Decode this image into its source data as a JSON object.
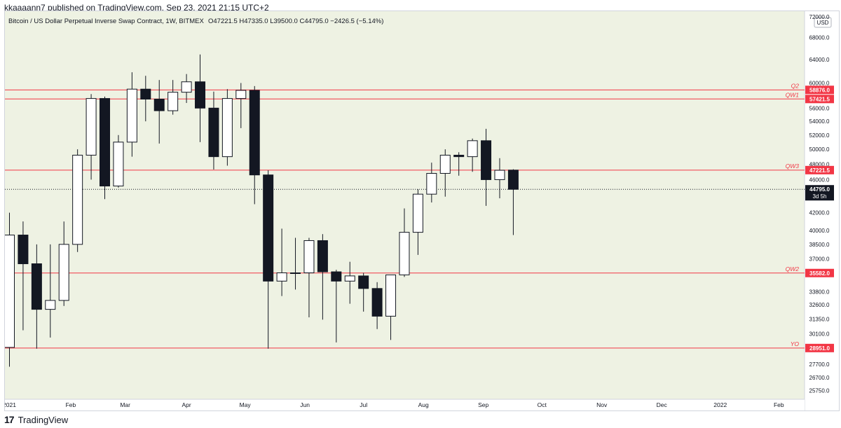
{
  "header": {
    "published_line": "kkaaaann7 published on TradingView.com, Sep 23, 2021 21:15 UTC+2"
  },
  "footer": {
    "logo": "17",
    "brand": "TradingView"
  },
  "chart_data": {
    "type": "candlestick",
    "title": "Bitcoin / US Dollar Perpetual Inverse Swap Contract, 1W, BITMEX",
    "ohlc_summary": "O47221.5  H47335.0  L39500.0  C44795.0  −2426.5 (−5.14%)",
    "currency_label": "USD",
    "y_axis_scale": "log",
    "ylim": [
      25000,
      73000
    ],
    "y_ticks": [
      {
        "value": 72000,
        "label": "72000.0"
      },
      {
        "value": 68000,
        "label": "68000.0"
      },
      {
        "value": 64000,
        "label": "64000.0"
      },
      {
        "value": 60000,
        "label": "60000.0"
      },
      {
        "value": 56000,
        "label": "56000.0"
      },
      {
        "value": 54000,
        "label": "54000.0"
      },
      {
        "value": 52000,
        "label": "52000.0"
      },
      {
        "value": 50000,
        "label": "50000.0"
      },
      {
        "value": 48000,
        "label": "48000.0"
      },
      {
        "value": 46000,
        "label": "46000.0"
      },
      {
        "value": 42000,
        "label": "42000.0"
      },
      {
        "value": 40000,
        "label": "40000.0"
      },
      {
        "value": 38500,
        "label": "38500.0"
      },
      {
        "value": 37000,
        "label": "37000.0"
      },
      {
        "value": 33800,
        "label": "33800.0"
      },
      {
        "value": 32600,
        "label": "32600.0"
      },
      {
        "value": 31350,
        "label": "31350.0"
      },
      {
        "value": 30100,
        "label": "30100.0"
      },
      {
        "value": 27700,
        "label": "27700.0"
      },
      {
        "value": 26700,
        "label": "26700.0"
      },
      {
        "value": 25750,
        "label": "25750.0"
      }
    ],
    "x_ticks": [
      {
        "week": 0,
        "label": "2021"
      },
      {
        "week": 4.5,
        "label": "Feb"
      },
      {
        "week": 8.5,
        "label": "Mar"
      },
      {
        "week": 13,
        "label": "Apr"
      },
      {
        "week": 17.3,
        "label": "May"
      },
      {
        "week": 21.7,
        "label": "Jun"
      },
      {
        "week": 26,
        "label": "Jul"
      },
      {
        "week": 30.4,
        "label": "Aug"
      },
      {
        "week": 34.8,
        "label": "Sep"
      },
      {
        "week": 39.1,
        "label": "Oct"
      },
      {
        "week": 43.5,
        "label": "Nov"
      },
      {
        "week": 47.9,
        "label": "Dec"
      },
      {
        "week": 52.2,
        "label": "2022"
      },
      {
        "week": 56.5,
        "label": "Feb"
      }
    ],
    "candles": [
      {
        "o": 29000,
        "h": 42000,
        "l": 27500,
        "c": 39500
      },
      {
        "o": 39500,
        "h": 41000,
        "l": 30400,
        "c": 36500
      },
      {
        "o": 36500,
        "h": 38500,
        "l": 28900,
        "c": 32200
      },
      {
        "o": 32200,
        "h": 38500,
        "l": 29800,
        "c": 33000
      },
      {
        "o": 33000,
        "h": 41000,
        "l": 32500,
        "c": 38500
      },
      {
        "o": 38500,
        "h": 50000,
        "l": 37700,
        "c": 49200
      },
      {
        "o": 49200,
        "h": 58200,
        "l": 46000,
        "c": 57500
      },
      {
        "o": 57500,
        "h": 57800,
        "l": 43600,
        "c": 45200
      },
      {
        "o": 45200,
        "h": 52000,
        "l": 45000,
        "c": 51000
      },
      {
        "o": 51000,
        "h": 61800,
        "l": 49000,
        "c": 59000
      },
      {
        "o": 59000,
        "h": 61200,
        "l": 54000,
        "c": 57400
      },
      {
        "o": 57400,
        "h": 60500,
        "l": 50800,
        "c": 55600
      },
      {
        "o": 55600,
        "h": 60500,
        "l": 55000,
        "c": 58500
      },
      {
        "o": 58500,
        "h": 61500,
        "l": 56800,
        "c": 60200
      },
      {
        "o": 60200,
        "h": 64900,
        "l": 51000,
        "c": 56000
      },
      {
        "o": 56000,
        "h": 58600,
        "l": 47300,
        "c": 49000
      },
      {
        "o": 49000,
        "h": 59000,
        "l": 47800,
        "c": 57500
      },
      {
        "o": 57500,
        "h": 60000,
        "l": 53000,
        "c": 58800
      },
      {
        "o": 58800,
        "h": 59500,
        "l": 43000,
        "c": 46600
      },
      {
        "o": 46600,
        "h": 47200,
        "l": 28900,
        "c": 34800
      },
      {
        "o": 34800,
        "h": 40200,
        "l": 33400,
        "c": 35600
      },
      {
        "o": 35600,
        "h": 39200,
        "l": 34000,
        "c": 35600
      },
      {
        "o": 35600,
        "h": 39200,
        "l": 31500,
        "c": 38900
      },
      {
        "o": 38900,
        "h": 39600,
        "l": 31300,
        "c": 35700
      },
      {
        "o": 35700,
        "h": 35900,
        "l": 29400,
        "c": 34800
      },
      {
        "o": 34800,
        "h": 36700,
        "l": 32700,
        "c": 35300
      },
      {
        "o": 35300,
        "h": 35600,
        "l": 32000,
        "c": 34100
      },
      {
        "o": 34100,
        "h": 34700,
        "l": 30500,
        "c": 31600
      },
      {
        "o": 31600,
        "h": 35400,
        "l": 29600,
        "c": 35400
      },
      {
        "o": 35400,
        "h": 42500,
        "l": 35200,
        "c": 39800
      },
      {
        "o": 39800,
        "h": 44800,
        "l": 37400,
        "c": 44200
      },
      {
        "o": 44200,
        "h": 48200,
        "l": 43200,
        "c": 46800
      },
      {
        "o": 46800,
        "h": 50000,
        "l": 43900,
        "c": 49200
      },
      {
        "o": 49200,
        "h": 49600,
        "l": 46500,
        "c": 49000
      },
      {
        "o": 49000,
        "h": 51500,
        "l": 47000,
        "c": 51200
      },
      {
        "o": 51200,
        "h": 52900,
        "l": 42800,
        "c": 46000
      },
      {
        "o": 46000,
        "h": 48800,
        "l": 43700,
        "c": 47200
      },
      {
        "o": 47221.5,
        "h": 47335.0,
        "l": 39500.0,
        "c": 44795.0
      }
    ],
    "levels": [
      {
        "name": "Q2",
        "value": 58876.0,
        "label": "58876.0"
      },
      {
        "name": "QW1",
        "value": 57421.5,
        "label": "57421.5"
      },
      {
        "name": "QW3",
        "value": 47221.5,
        "label": "47221.5"
      },
      {
        "name": "QW2",
        "value": 35582.0,
        "label": "35582.0"
      },
      {
        "name": "YO",
        "value": 28951.0,
        "label": "28951.0"
      }
    ],
    "last_price": {
      "value": 44795.0,
      "label": "44795.0",
      "countdown": "3d 5h"
    },
    "colors": {
      "background": "#eef2e3",
      "bull_body": "#ffffff",
      "bear_body": "#131722",
      "candle_border": "#131722",
      "level_line": "#f23645",
      "level_text": "#f23645",
      "last_price_bg": "#131722"
    }
  }
}
